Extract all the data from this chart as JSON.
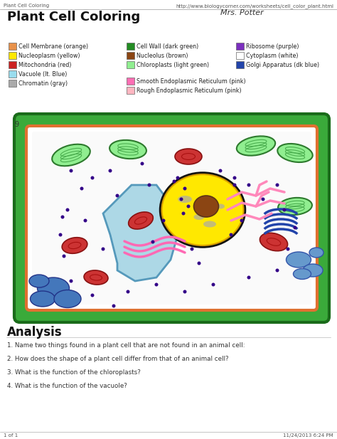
{
  "title": "Plant Cell Coloring",
  "header_left": "Plant Cell Coloring",
  "header_right": "http://www.biologycorner.com/worksheets/cell_color_plant.html",
  "signature": "Mrs. Potter",
  "footer_left": "1 of 1",
  "footer_right": "11/24/2013 6:24 PM",
  "legend_col0": [
    {
      "label": "Cell Membrane (orange)",
      "color": "#E8914A"
    },
    {
      "label": "Nucleoplasm (yellow)",
      "color": "#FFE800"
    },
    {
      "label": "Mitochondria (red)",
      "color": "#CC2222"
    },
    {
      "label": "Vacuole (lt. Blue)",
      "color": "#99DDEE"
    },
    {
      "label": "Chromatin (gray)",
      "color": "#AAAAAA"
    }
  ],
  "legend_col1_top": [
    {
      "label": "Cell Wall (dark green)",
      "color": "#228B22"
    },
    {
      "label": "Nucleolus (brown)",
      "color": "#8B4513"
    },
    {
      "label": "Chloroplasts (light green)",
      "color": "#90EE90"
    }
  ],
  "legend_col1_bot": [
    {
      "label": "Smooth Endoplasmic Reticulum (pink)",
      "color": "#FF6EB4"
    },
    {
      "label": "Rough Endoplasmic Reticulum (pink)",
      "color": "#FFB6C1"
    }
  ],
  "legend_col2": [
    {
      "label": "Ribosome (purple)",
      "color": "#7B2FBE"
    },
    {
      "label": "Cytoplasm (white)",
      "color": "#FFFFFF"
    },
    {
      "label": "Golgi Apparatus (dk blue)",
      "color": "#2244AA"
    }
  ],
  "analysis_title": "Analysis",
  "analysis_questions": [
    "1. Name two things found in a plant cell that are not found in an animal cell:",
    "2. How does the shape of a plant cell differ from that of an animal cell?",
    "3. What is the function of the chloroplasts?",
    "4. What is the function of the vacuole?"
  ],
  "bg_color": "#FFFFFF"
}
